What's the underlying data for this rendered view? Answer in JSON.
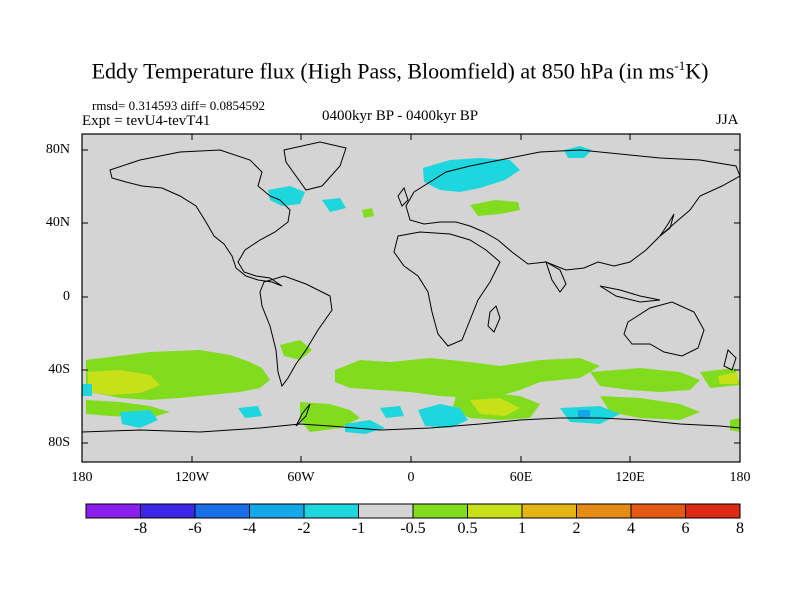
{
  "title_main": "Eddy Temperature flux (High Pass, Bloomfield) at 850 hPa (in ms",
  "title_sup": "-1",
  "title_end": "K)",
  "stats": "rmsd= 0.314593 diff= 0.0854592",
  "experiment": "Expt = tevU4-tevT41",
  "period": "0400kyr BP - 0400kyr BP",
  "season": "JJA",
  "y_ticks": [
    "80N",
    "40N",
    "0",
    "40S",
    "80S"
  ],
  "x_ticks": [
    "180",
    "120W",
    "60W",
    "0",
    "60E",
    "120E",
    "180"
  ],
  "colorbar": {
    "labels": [
      "-8",
      "-6",
      "-4",
      "-2",
      "-1",
      "-0.5",
      "0.5",
      "1",
      "2",
      "4",
      "6",
      "8"
    ],
    "colors": [
      "#8a1ff0",
      "#3c27e8",
      "#1a6fe8",
      "#14a8e6",
      "#1ed6de",
      "#d4d4d4",
      "#82dc1e",
      "#c8e018",
      "#e4b414",
      "#e48c14",
      "#e45a14",
      "#dc2a14"
    ]
  },
  "colors": {
    "ocean_land_background": "#d4d4d4",
    "positive_small": "#82dc1e",
    "positive_medium": "#c8e018",
    "negative_small": "#1ed6de",
    "negative_medium": "#14a8e6",
    "negative_large": "#1a6fe8"
  }
}
